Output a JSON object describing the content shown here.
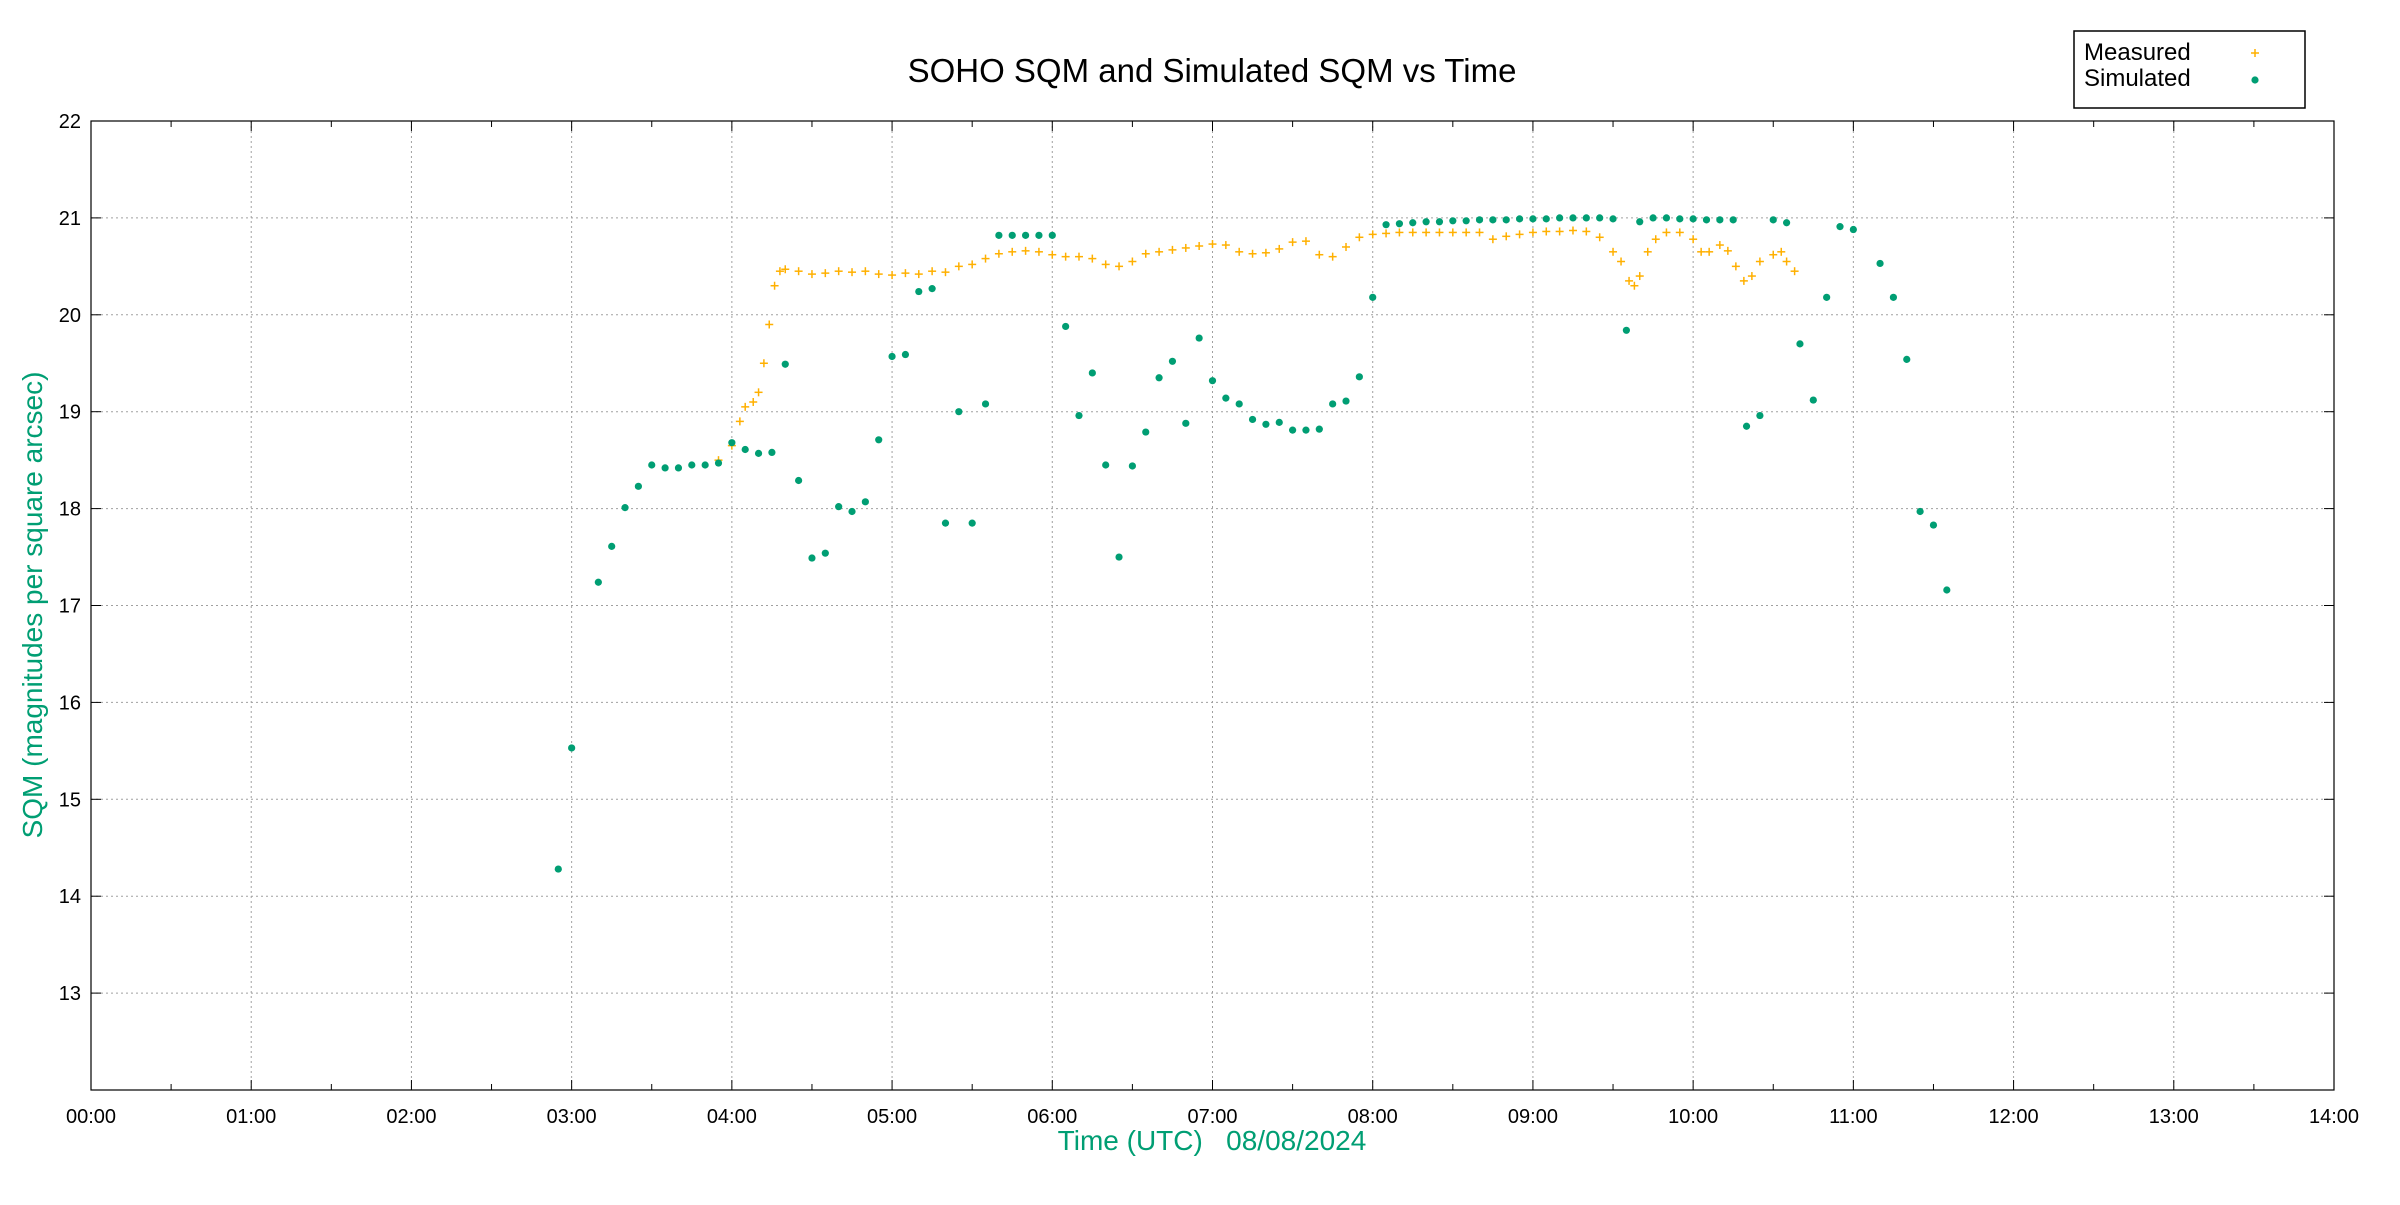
{
  "chart_data": {
    "type": "scatter",
    "title": "SOHO SQM and Simulated SQM vs Time",
    "xlabel": "Time (UTC)   08/08/2024",
    "ylabel": "SQM (magnitudes per square arcsec)",
    "xlim": [
      "00:00",
      "14:00"
    ],
    "ylim": [
      12,
      22
    ],
    "x_ticks": [
      "00:00",
      "01:00",
      "02:00",
      "03:00",
      "04:00",
      "05:00",
      "06:00",
      "07:00",
      "08:00",
      "09:00",
      "10:00",
      "11:00",
      "12:00",
      "13:00",
      "14:00"
    ],
    "y_ticks": [
      13,
      14,
      15,
      16,
      17,
      18,
      19,
      20,
      21,
      22
    ],
    "grid": true,
    "legend_position": "top-right",
    "colors": {
      "measured": "#ffb000",
      "simulated": "#009e73",
      "axis_label": "#009e73"
    },
    "series": [
      {
        "name": "Measured",
        "marker": "plus",
        "points": [
          [
            "03:55",
            18.5
          ],
          [
            "04:00",
            18.65
          ],
          [
            "04:03",
            18.9
          ],
          [
            "04:05",
            19.05
          ],
          [
            "04:08",
            19.1
          ],
          [
            "04:10",
            19.2
          ],
          [
            "04:12",
            19.5
          ],
          [
            "04:14",
            19.9
          ],
          [
            "04:16",
            20.3
          ],
          [
            "04:18",
            20.45
          ],
          [
            "04:20",
            20.47
          ],
          [
            "04:25",
            20.45
          ],
          [
            "04:30",
            20.42
          ],
          [
            "04:35",
            20.43
          ],
          [
            "04:40",
            20.45
          ],
          [
            "04:45",
            20.44
          ],
          [
            "04:50",
            20.45
          ],
          [
            "04:55",
            20.42
          ],
          [
            "05:00",
            20.41
          ],
          [
            "05:05",
            20.43
          ],
          [
            "05:10",
            20.42
          ],
          [
            "05:15",
            20.45
          ],
          [
            "05:20",
            20.44
          ],
          [
            "05:25",
            20.5
          ],
          [
            "05:30",
            20.52
          ],
          [
            "05:35",
            20.58
          ],
          [
            "05:40",
            20.63
          ],
          [
            "05:45",
            20.65
          ],
          [
            "05:50",
            20.66
          ],
          [
            "05:55",
            20.65
          ],
          [
            "06:00",
            20.62
          ],
          [
            "06:05",
            20.6
          ],
          [
            "06:10",
            20.6
          ],
          [
            "06:15",
            20.58
          ],
          [
            "06:20",
            20.52
          ],
          [
            "06:25",
            20.5
          ],
          [
            "06:30",
            20.55
          ],
          [
            "06:35",
            20.63
          ],
          [
            "06:40",
            20.65
          ],
          [
            "06:45",
            20.67
          ],
          [
            "06:50",
            20.69
          ],
          [
            "06:55",
            20.71
          ],
          [
            "07:00",
            20.73
          ],
          [
            "07:05",
            20.72
          ],
          [
            "07:10",
            20.65
          ],
          [
            "07:15",
            20.63
          ],
          [
            "07:20",
            20.64
          ],
          [
            "07:25",
            20.68
          ],
          [
            "07:30",
            20.75
          ],
          [
            "07:35",
            20.76
          ],
          [
            "07:40",
            20.62
          ],
          [
            "07:45",
            20.6
          ],
          [
            "07:50",
            20.7
          ],
          [
            "07:55",
            20.8
          ],
          [
            "08:00",
            20.83
          ],
          [
            "08:05",
            20.84
          ],
          [
            "08:10",
            20.85
          ],
          [
            "08:15",
            20.85
          ],
          [
            "08:20",
            20.85
          ],
          [
            "08:25",
            20.85
          ],
          [
            "08:30",
            20.85
          ],
          [
            "08:35",
            20.85
          ],
          [
            "08:40",
            20.85
          ],
          [
            "08:45",
            20.78
          ],
          [
            "08:50",
            20.81
          ],
          [
            "08:55",
            20.83
          ],
          [
            "09:00",
            20.85
          ],
          [
            "09:05",
            20.86
          ],
          [
            "09:10",
            20.86
          ],
          [
            "09:15",
            20.87
          ],
          [
            "09:20",
            20.86
          ],
          [
            "09:25",
            20.8
          ],
          [
            "09:30",
            20.65
          ],
          [
            "09:33",
            20.55
          ],
          [
            "09:36",
            20.35
          ],
          [
            "09:38",
            20.3
          ],
          [
            "09:40",
            20.4
          ],
          [
            "09:43",
            20.65
          ],
          [
            "09:46",
            20.78
          ],
          [
            "09:50",
            20.85
          ],
          [
            "09:55",
            20.85
          ],
          [
            "10:00",
            20.78
          ],
          [
            "10:03",
            20.65
          ],
          [
            "10:06",
            20.65
          ],
          [
            "10:10",
            20.72
          ],
          [
            "10:13",
            20.66
          ],
          [
            "10:16",
            20.5
          ],
          [
            "10:19",
            20.35
          ],
          [
            "10:22",
            20.4
          ],
          [
            "10:25",
            20.55
          ],
          [
            "10:30",
            20.62
          ],
          [
            "10:33",
            20.65
          ],
          [
            "10:35",
            20.55
          ],
          [
            "10:38",
            20.45
          ]
        ]
      },
      {
        "name": "Simulated",
        "marker": "dot",
        "points": [
          [
            "02:55",
            14.28
          ],
          [
            "03:00",
            15.53
          ],
          [
            "03:10",
            17.24
          ],
          [
            "03:15",
            17.61
          ],
          [
            "03:20",
            18.01
          ],
          [
            "03:25",
            18.23
          ],
          [
            "03:30",
            18.45
          ],
          [
            "03:35",
            18.42
          ],
          [
            "03:40",
            18.42
          ],
          [
            "03:45",
            18.45
          ],
          [
            "03:50",
            18.45
          ],
          [
            "03:55",
            18.47
          ],
          [
            "04:00",
            18.68
          ],
          [
            "04:05",
            18.61
          ],
          [
            "04:10",
            18.57
          ],
          [
            "04:15",
            18.58
          ],
          [
            "04:20",
            19.49
          ],
          [
            "04:25",
            18.29
          ],
          [
            "04:30",
            17.49
          ],
          [
            "04:35",
            17.54
          ],
          [
            "04:40",
            18.02
          ],
          [
            "04:45",
            17.97
          ],
          [
            "04:50",
            18.07
          ],
          [
            "04:55",
            18.71
          ],
          [
            "05:00",
            19.57
          ],
          [
            "05:05",
            19.59
          ],
          [
            "05:10",
            20.24
          ],
          [
            "05:15",
            20.27
          ],
          [
            "05:20",
            17.85
          ],
          [
            "05:25",
            19.0
          ],
          [
            "05:30",
            17.85
          ],
          [
            "05:35",
            19.08
          ],
          [
            "05:40",
            20.82
          ],
          [
            "05:45",
            20.82
          ],
          [
            "05:50",
            20.82
          ],
          [
            "05:55",
            20.82
          ],
          [
            "06:00",
            20.82
          ],
          [
            "06:05",
            19.88
          ],
          [
            "06:10",
            18.96
          ],
          [
            "06:15",
            19.4
          ],
          [
            "06:20",
            18.45
          ],
          [
            "06:25",
            17.5
          ],
          [
            "06:30",
            18.44
          ],
          [
            "06:35",
            18.79
          ],
          [
            "06:40",
            19.35
          ],
          [
            "06:45",
            19.52
          ],
          [
            "06:50",
            18.88
          ],
          [
            "06:55",
            19.76
          ],
          [
            "07:00",
            19.32
          ],
          [
            "07:05",
            19.14
          ],
          [
            "07:10",
            19.08
          ],
          [
            "07:15",
            18.92
          ],
          [
            "07:20",
            18.87
          ],
          [
            "07:25",
            18.89
          ],
          [
            "07:30",
            18.81
          ],
          [
            "07:35",
            18.81
          ],
          [
            "07:40",
            18.82
          ],
          [
            "07:45",
            19.08
          ],
          [
            "07:50",
            19.11
          ],
          [
            "07:55",
            19.36
          ],
          [
            "08:00",
            20.18
          ],
          [
            "08:05",
            20.93
          ],
          [
            "08:10",
            20.94
          ],
          [
            "08:15",
            20.95
          ],
          [
            "08:20",
            20.96
          ],
          [
            "08:25",
            20.96
          ],
          [
            "08:30",
            20.97
          ],
          [
            "08:35",
            20.97
          ],
          [
            "08:40",
            20.98
          ],
          [
            "08:45",
            20.98
          ],
          [
            "08:50",
            20.98
          ],
          [
            "08:55",
            20.99
          ],
          [
            "09:00",
            20.99
          ],
          [
            "09:05",
            20.99
          ],
          [
            "09:10",
            21.0
          ],
          [
            "09:15",
            21.0
          ],
          [
            "09:20",
            21.0
          ],
          [
            "09:25",
            21.0
          ],
          [
            "09:30",
            20.99
          ],
          [
            "09:35",
            19.84
          ],
          [
            "09:40",
            20.96
          ],
          [
            "09:45",
            21.0
          ],
          [
            "09:50",
            21.0
          ],
          [
            "09:55",
            20.99
          ],
          [
            "10:00",
            20.99
          ],
          [
            "10:05",
            20.98
          ],
          [
            "10:10",
            20.98
          ],
          [
            "10:15",
            20.98
          ],
          [
            "10:20",
            18.85
          ],
          [
            "10:25",
            18.96
          ],
          [
            "10:30",
            20.98
          ],
          [
            "10:35",
            20.95
          ],
          [
            "10:40",
            19.7
          ],
          [
            "10:45",
            19.12
          ],
          [
            "10:50",
            20.18
          ],
          [
            "10:55",
            20.91
          ],
          [
            "11:00",
            20.88
          ],
          [
            "11:10",
            20.53
          ],
          [
            "11:15",
            20.18
          ],
          [
            "11:20",
            19.54
          ],
          [
            "11:25",
            17.97
          ],
          [
            "11:30",
            17.83
          ],
          [
            "11:35",
            17.16
          ]
        ]
      }
    ]
  }
}
